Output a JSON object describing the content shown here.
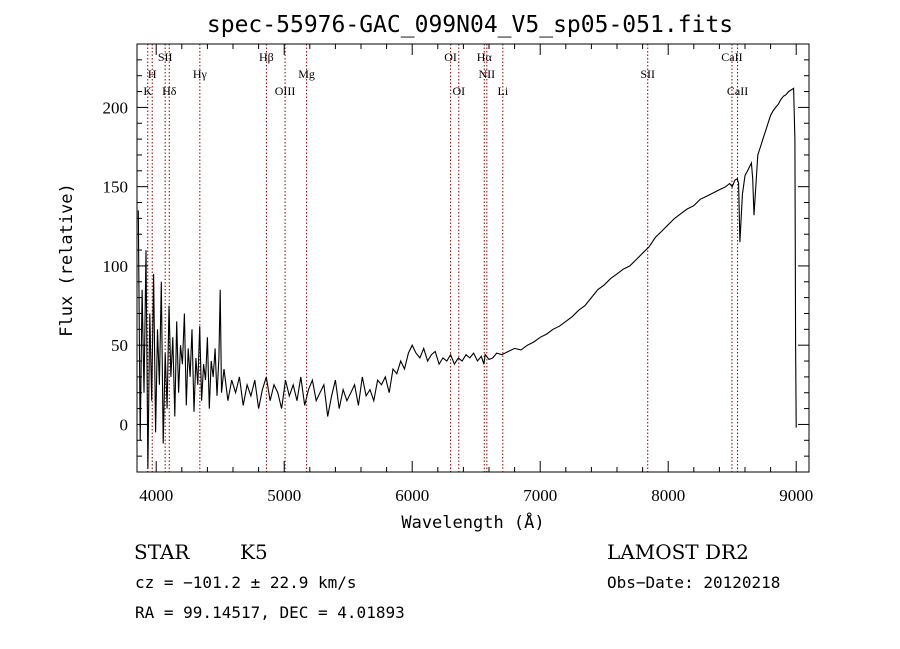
{
  "chart_data": {
    "type": "line",
    "title": "spec-55976-GAC_099N04_V5_sp05-051.fits",
    "xlabel": "Wavelength (Å)",
    "ylabel": "Flux (relative)",
    "xlim": [
      3850,
      9100
    ],
    "ylim": [
      -30,
      240
    ],
    "x_ticks": [
      4000,
      5000,
      6000,
      7000,
      8000,
      9000
    ],
    "y_ticks": [
      0,
      50,
      100,
      150,
      200
    ],
    "grid": false,
    "line_color": "#000000",
    "marker_color": "#8b0000",
    "series": [
      {
        "x": [
          3860,
          3875,
          3890,
          3905,
          3920,
          3935,
          3950,
          3965,
          3980,
          3995,
          4010,
          4025,
          4040,
          4055,
          4070,
          4085,
          4100,
          4115,
          4130,
          4145,
          4160,
          4175,
          4190,
          4205,
          4220,
          4235,
          4250,
          4265,
          4280,
          4295,
          4310,
          4325,
          4340,
          4355,
          4370,
          4385,
          4400,
          4415,
          4430,
          4445,
          4460,
          4475,
          4490,
          4500,
          4510,
          4530,
          4560,
          4590,
          4620,
          4650,
          4680,
          4710,
          4740,
          4770,
          4800,
          4830,
          4860,
          4890,
          4920,
          4950,
          4980,
          5010,
          5040,
          5070,
          5100,
          5130,
          5160,
          5190,
          5220,
          5250,
          5280,
          5310,
          5340,
          5370,
          5400,
          5430,
          5460,
          5490,
          5520,
          5550,
          5580,
          5610,
          5640,
          5670,
          5700,
          5730,
          5760,
          5790,
          5820,
          5850,
          5880,
          5910,
          5940,
          5970,
          6000,
          6030,
          6060,
          6090,
          6120,
          6150,
          6180,
          6210,
          6240,
          6270,
          6300,
          6330,
          6360,
          6390,
          6420,
          6450,
          6480,
          6510,
          6540,
          6560,
          6570,
          6600,
          6630,
          6660,
          6700,
          6750,
          6800,
          6850,
          6900,
          6950,
          7000,
          7050,
          7100,
          7150,
          7200,
          7250,
          7300,
          7350,
          7400,
          7450,
          7500,
          7550,
          7600,
          7650,
          7700,
          7750,
          7800,
          7850,
          7900,
          7950,
          8000,
          8050,
          8100,
          8150,
          8200,
          8250,
          8300,
          8350,
          8400,
          8450,
          8480,
          8500,
          8520,
          8540,
          8550,
          8560,
          8580,
          8600,
          8620,
          8650,
          8660,
          8670,
          8700,
          8720,
          8740,
          8760,
          8780,
          8800,
          8820,
          8840,
          8860,
          8880,
          8900,
          8920,
          8940,
          8960,
          8980,
          8990,
          8995,
          9000
        ],
        "y": [
          135,
          -10,
          85,
          20,
          110,
          -28,
          70,
          15,
          95,
          -5,
          60,
          25,
          90,
          -12,
          45,
          10,
          75,
          30,
          55,
          5,
          65,
          20,
          50,
          38,
          70,
          12,
          48,
          30,
          60,
          8,
          42,
          25,
          62,
          15,
          38,
          28,
          55,
          10,
          40,
          30,
          48,
          18,
          42,
          85,
          20,
          35,
          15,
          28,
          20,
          30,
          12,
          25,
          18,
          28,
          10,
          22,
          30,
          15,
          25,
          20,
          10,
          28,
          18,
          25,
          15,
          30,
          12,
          22,
          28,
          15,
          20,
          25,
          5,
          18,
          28,
          10,
          22,
          15,
          20,
          25,
          12,
          30,
          18,
          22,
          15,
          28,
          25,
          30,
          20,
          35,
          32,
          40,
          35,
          45,
          50,
          45,
          42,
          48,
          40,
          44,
          46,
          38,
          42,
          40,
          44,
          38,
          42,
          40,
          44,
          42,
          45,
          40,
          43,
          38,
          44,
          41,
          42,
          45,
          44,
          46,
          48,
          47,
          50,
          52,
          55,
          57,
          60,
          62,
          65,
          68,
          72,
          75,
          80,
          85,
          88,
          92,
          95,
          98,
          100,
          104,
          108,
          112,
          118,
          122,
          126,
          130,
          133,
          136,
          138,
          142,
          144,
          146,
          148,
          150,
          152,
          150,
          154,
          155,
          152,
          115,
          145,
          157,
          160,
          165,
          155,
          132,
          170,
          175,
          180,
          185,
          190,
          195,
          198,
          200,
          202,
          205,
          207,
          208,
          210,
          211,
          212,
          180,
          50,
          -2
        ]
      }
    ],
    "line_markers": [
      {
        "label": "K",
        "x": 3934,
        "row": 3
      },
      {
        "label": "H",
        "x": 3969,
        "row": 2
      },
      {
        "label": "SII",
        "x": 4070,
        "row": 1
      },
      {
        "label": "Hδ",
        "x": 4102,
        "row": 3
      },
      {
        "label": "Hγ",
        "x": 4341,
        "row": 2
      },
      {
        "label": "Hβ",
        "x": 4861,
        "row": 1
      },
      {
        "label": "OIII",
        "x": 5007,
        "row": 3
      },
      {
        "label": "Mg",
        "x": 5175,
        "row": 2
      },
      {
        "label": "OI",
        "x": 6300,
        "row": 1
      },
      {
        "label": "OI",
        "x": 6364,
        "row": 3
      },
      {
        "label": "Hα",
        "x": 6563,
        "row": 1
      },
      {
        "label": "NII",
        "x": 6583,
        "row": 2
      },
      {
        "label": "Li",
        "x": 6708,
        "row": 3
      },
      {
        "label": "SII",
        "x": 7840,
        "row": 2
      },
      {
        "label": "CaII",
        "x": 8498,
        "row": 1
      },
      {
        "label": "CaII",
        "x": 8542,
        "row": 3
      }
    ]
  },
  "info": {
    "class": "STAR",
    "subclass": "K5",
    "survey": "LAMOST DR2",
    "cz": "cz = −101.2 ± 22.9 km/s",
    "obs_date": "Obs−Date: 20120218",
    "radec": "RA =  99.14517, DEC =   4.01893"
  }
}
